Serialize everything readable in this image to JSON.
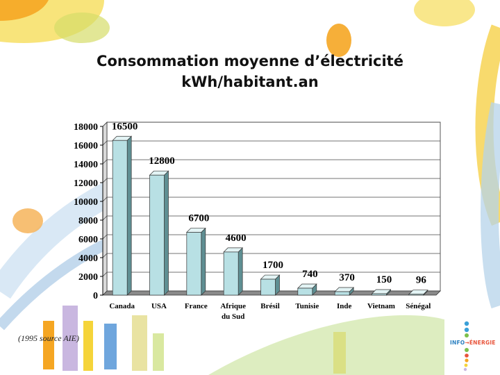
{
  "title": [
    "Consommation moyenne d’électricité",
    "kWh/habitant.an"
  ],
  "source_note": "(1995 source AIE)",
  "logo": {
    "text_left": "INFO",
    "arrow": "→",
    "text_right": "ÉNERGIE"
  },
  "colors": {
    "bar_front": "#b8e0e4",
    "bar_side": "#5f8f93",
    "bar_top": "#e3f4f5",
    "accent_yellow": "#f4d24a",
    "accent_orange": "#f5a623"
  },
  "chart_data": {
    "type": "bar",
    "style": "3d",
    "categories": [
      "Canada",
      "USA",
      "France",
      "Afrique du Sud",
      "Brésil",
      "Tunisie",
      "Inde",
      "Vietnam",
      "Sénégal"
    ],
    "category_lines": [
      [
        "Canada"
      ],
      [
        "USA"
      ],
      [
        "France"
      ],
      [
        "Afrique",
        "du Sud"
      ],
      [
        "Brésil"
      ],
      [
        "Tunisie"
      ],
      [
        "Inde"
      ],
      [
        "Vietnam"
      ],
      [
        "Sénégal"
      ]
    ],
    "values": [
      16500,
      12800,
      6700,
      4600,
      1700,
      740,
      370,
      150,
      96
    ],
    "data_labels": [
      "16500",
      "12800",
      "6700",
      "4600",
      "1700",
      "740",
      "370",
      "150",
      "96"
    ],
    "yticks": [
      0,
      2000,
      4000,
      6000,
      8000,
      10000,
      12000,
      14000,
      16000,
      18000
    ],
    "ylim": [
      0,
      18000
    ],
    "grid": true,
    "legend": "none"
  }
}
